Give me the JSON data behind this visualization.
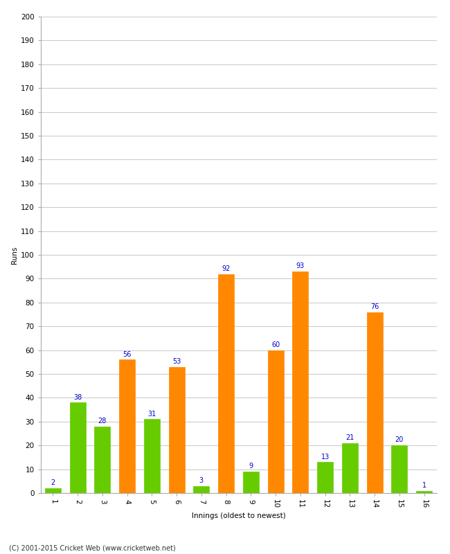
{
  "xlabel": "Innings (oldest to newest)",
  "ylabel": "Runs",
  "innings": [
    1,
    2,
    3,
    4,
    5,
    6,
    7,
    8,
    9,
    10,
    11,
    12,
    13,
    14,
    15,
    16
  ],
  "values": [
    2,
    38,
    28,
    56,
    31,
    53,
    3,
    92,
    9,
    60,
    93,
    13,
    21,
    76,
    20,
    1
  ],
  "colors": [
    "#66cc00",
    "#66cc00",
    "#66cc00",
    "#ff8800",
    "#66cc00",
    "#ff8800",
    "#66cc00",
    "#ff8800",
    "#66cc00",
    "#ff8800",
    "#ff8800",
    "#66cc00",
    "#66cc00",
    "#ff8800",
    "#66cc00",
    "#66cc00"
  ],
  "ylim": [
    0,
    200
  ],
  "yticks": [
    0,
    10,
    20,
    30,
    40,
    50,
    60,
    70,
    80,
    90,
    100,
    110,
    120,
    130,
    140,
    150,
    160,
    170,
    180,
    190,
    200
  ],
  "label_color": "#0000cc",
  "label_fontsize": 7,
  "axis_fontsize": 7.5,
  "xlabel_fontsize": 7.5,
  "ylabel_fontsize": 7.5,
  "footer": "(C) 2001-2015 Cricket Web (www.cricketweb.net)",
  "footer_fontsize": 7,
  "background_color": "#ffffff",
  "grid_color": "#cccccc",
  "bar_width": 0.65,
  "xlim": [
    0.5,
    16.5
  ]
}
